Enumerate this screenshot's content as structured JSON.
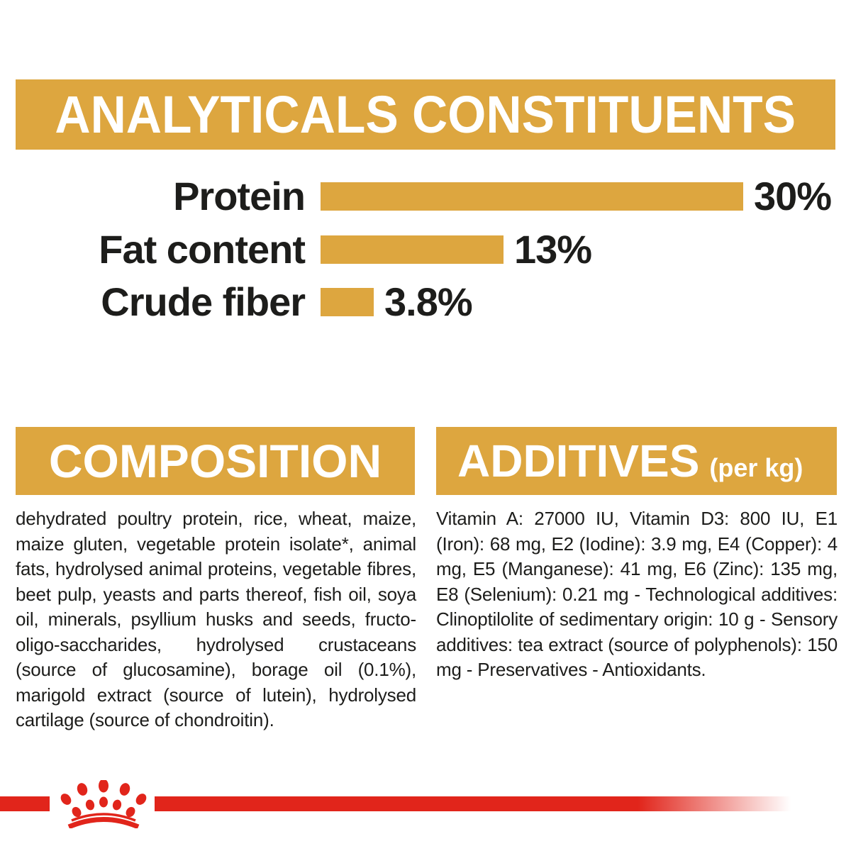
{
  "colors": {
    "gold": "#DDA63F",
    "red": "#E1251B",
    "ink": "#1D1D1B",
    "white": "#FFFFFF"
  },
  "analyticals": {
    "title": "ANALYTICALS CONSTITUENTS"
  },
  "chart_data": {
    "type": "bar",
    "orientation": "horizontal",
    "title": "ANALYTICALS CONSTITUENTS",
    "categories": [
      "Protein",
      "Fat content",
      "Crude fiber"
    ],
    "values": [
      30,
      13,
      3.8
    ],
    "value_labels": [
      "30%",
      "13%",
      "3.8%"
    ],
    "unit": "%",
    "xlim": [
      0,
      30
    ],
    "bar_color": "#DDA63F",
    "grid": false,
    "legend": false
  },
  "composition": {
    "title": "COMPOSITION",
    "body": "dehydrated poultry protein, rice, wheat, maize, maize gluten, vegetable protein isolate*, animal fats, hydrolysed animal proteins, vegetable fibres, beet pulp, yeasts and parts thereof, fish oil, soya oil, minerals, psyllium husks and seeds, fructo-oligo-saccharides, hydrolysed crustaceans (source of glucosamine), borage oil (0.1%), marigold extract (source of lutein), hydrolysed cartilage (source of chondroitin)."
  },
  "additives": {
    "title": "ADDITIVES",
    "subtitle": "(per kg)",
    "body": "Vitamin A: 27000 IU, Vitamin D3: 800 IU, E1 (Iron): 68 mg, E2 (Iodine): 3.9 mg, E4 (Copper): 4 mg, E5 (Manganese): 41 mg, E6 (Zinc): 135 mg, E8 (Selenium): 0.21 mg - Technological additives: Clinoptilolite of sedimentary origin: 10 g - Sensory additives: tea extract (source of polyphenols): 150 mg - Preservatives - Antioxidants.",
    "title_full": "ADDITIVES (per kg)"
  },
  "footer": {
    "logo": "royal-canin-crown"
  }
}
